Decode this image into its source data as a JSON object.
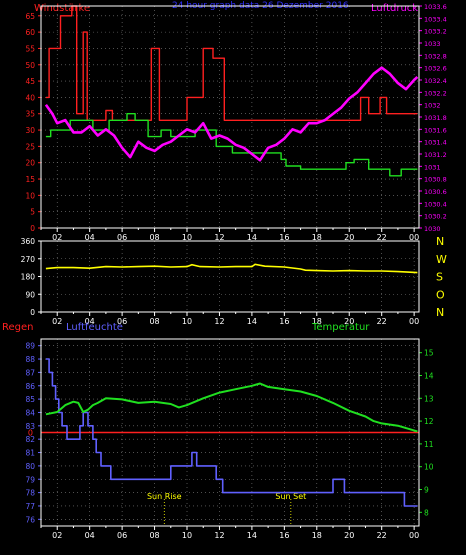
{
  "header": {
    "title": "24 hour graph data  26 Dezember 2016",
    "left_label": "Windstärke",
    "right_label": "Luftdruck"
  },
  "colors": {
    "background": "#000000",
    "frame": "#ffffff",
    "grid": "#808080",
    "wind_gust": "#ff2020",
    "wind_avg": "#20e020",
    "pressure": "#ff00ff",
    "direction": "#ffff00",
    "rain": "#ff2020",
    "humidity": "#6060ff",
    "temperature": "#20e020",
    "title": "#3030ff",
    "sun": "#ffff00",
    "ticks_orange": "#ff8020"
  },
  "chart_data": [
    {
      "id": "wind-pressure",
      "type": "line",
      "title": "24 hour graph data  26 Dezember 2016",
      "x_ticks": [
        "02",
        "04",
        "06",
        "08",
        "10",
        "12",
        "14",
        "16",
        "18",
        "20",
        "22",
        "00"
      ],
      "x_range": [
        1,
        24.3
      ],
      "y_left": {
        "label": "Windstärke",
        "ylim": [
          0,
          68
        ],
        "ticks": [
          0,
          5,
          10,
          15,
          20,
          25,
          30,
          35,
          40,
          45,
          50,
          55,
          60,
          65
        ]
      },
      "y_right": {
        "label": "Luftdruck",
        "ylim": [
          1030.0,
          1033.6
        ],
        "ticks": [
          "1030",
          "1030.2",
          "1030.4",
          "1030.6",
          "1030.8",
          "1031",
          "1031.2",
          "1031.4",
          "1031.6",
          "1031.8",
          "1032",
          "1032.2",
          "1032.4",
          "1032.6",
          "1032.8",
          "1033",
          "1033.2",
          "1033.4",
          "1033.6"
        ]
      },
      "series": [
        {
          "name": "",
          "axis": "left",
          "color": "#ff2020",
          "x": [
            1.3,
            1.5,
            1.5,
            2.2,
            2.2,
            2.9,
            2.9,
            3.2,
            3.2,
            3.6,
            3.6,
            3.85,
            3.85,
            5.0,
            5.0,
            5.4,
            5.4,
            6.0,
            6.0,
            7.8,
            7.8,
            8.3,
            8.3,
            10.0,
            10.0,
            11.0,
            11.0,
            11.6,
            11.6,
            12.3,
            12.3,
            20.7,
            20.7,
            21.2,
            21.2,
            21.9,
            21.9,
            22.3,
            22.3,
            24.2
          ],
          "y": [
            40,
            40,
            55,
            55,
            65,
            65,
            68,
            68,
            35,
            35,
            60,
            60,
            33,
            33,
            36,
            36,
            33,
            33,
            33,
            33,
            55,
            55,
            33,
            33,
            40,
            40,
            55,
            55,
            52,
            52,
            33,
            33,
            40,
            40,
            35,
            35,
            40,
            40,
            35,
            35
          ]
        },
        {
          "name": "",
          "axis": "left",
          "color": "#20e020",
          "x": [
            1.3,
            1.6,
            1.6,
            2.8,
            2.8,
            4.2,
            4.2,
            5.2,
            5.2,
            6.3,
            6.3,
            6.8,
            6.8,
            7.6,
            7.6,
            8.4,
            8.4,
            9.0,
            9.0,
            10.5,
            10.5,
            11.8,
            11.8,
            12.8,
            12.8,
            15.8,
            15.8,
            16.1,
            16.1,
            17.0,
            17.0,
            19.8,
            19.8,
            20.3,
            20.3,
            21.2,
            21.2,
            22.5,
            22.5,
            23.2,
            23.2,
            24.2
          ],
          "y": [
            28,
            28,
            30,
            30,
            33,
            33,
            30,
            30,
            33,
            33,
            35,
            35,
            33,
            33,
            28,
            28,
            30,
            30,
            28,
            28,
            30,
            30,
            25,
            25,
            23,
            23,
            21,
            21,
            19,
            19,
            18,
            18,
            20,
            20,
            21,
            21,
            18,
            18,
            16,
            16,
            18,
            18
          ]
        },
        {
          "name": "",
          "axis": "right",
          "color": "#ff00ff",
          "x": [
            1.3,
            1.7,
            2.0,
            2.5,
            3.0,
            3.5,
            4.0,
            4.5,
            5.0,
            5.5,
            6.0,
            6.5,
            7.0,
            7.5,
            8.0,
            8.5,
            9.0,
            9.5,
            10.0,
            10.5,
            11.0,
            11.5,
            12.0,
            12.5,
            13.0,
            13.5,
            14.0,
            14.5,
            15.0,
            15.5,
            16.0,
            16.5,
            17.0,
            17.5,
            18.0,
            18.5,
            19.0,
            19.5,
            20.0,
            20.5,
            21.0,
            21.5,
            22.0,
            22.5,
            23.0,
            23.5,
            24.0,
            24.2
          ],
          "y": [
            1032.0,
            1031.85,
            1031.7,
            1031.75,
            1031.55,
            1031.55,
            1031.65,
            1031.5,
            1031.6,
            1031.5,
            1031.3,
            1031.15,
            1031.4,
            1031.3,
            1031.25,
            1031.35,
            1031.4,
            1031.5,
            1031.6,
            1031.55,
            1031.7,
            1031.45,
            1031.5,
            1031.45,
            1031.35,
            1031.3,
            1031.2,
            1031.1,
            1031.3,
            1031.35,
            1031.45,
            1031.6,
            1031.55,
            1031.7,
            1031.7,
            1031.75,
            1031.85,
            1031.95,
            1032.1,
            1032.2,
            1032.35,
            1032.5,
            1032.6,
            1032.5,
            1032.35,
            1032.25,
            1032.4,
            1032.45
          ]
        }
      ]
    },
    {
      "id": "wind-direction",
      "type": "line",
      "x_ticks": [
        "02",
        "04",
        "06",
        "08",
        "10",
        "12",
        "14",
        "16",
        "18",
        "20",
        "22",
        "00"
      ],
      "x_range": [
        1,
        24.3
      ],
      "y_left": {
        "ylim": [
          0,
          360
        ],
        "ticks": [
          0,
          90,
          180,
          270,
          360
        ]
      },
      "y_right_labels": [
        "N",
        "W",
        "S",
        "O",
        "N"
      ],
      "series": [
        {
          "name": "",
          "color": "#ffff00",
          "x": [
            1.3,
            2.0,
            3.0,
            4.0,
            5.0,
            6.0,
            7.0,
            8.0,
            9.0,
            10.0,
            10.3,
            10.8,
            12.0,
            13.0,
            14.0,
            14.2,
            14.8,
            16.0,
            17.0,
            17.3,
            18.0,
            19.0,
            20.0,
            21.0,
            22.0,
            23.0,
            24.2
          ],
          "y": [
            220,
            225,
            225,
            222,
            230,
            228,
            230,
            232,
            228,
            230,
            240,
            230,
            228,
            230,
            230,
            242,
            232,
            228,
            218,
            212,
            210,
            208,
            210,
            208,
            208,
            205,
            200
          ]
        }
      ]
    },
    {
      "id": "rain-humidity-temperature",
      "type": "line",
      "x_ticks": [
        "02",
        "04",
        "06",
        "08",
        "10",
        "12",
        "14",
        "16",
        "18",
        "20",
        "22",
        "00"
      ],
      "x_range": [
        1,
        24.3
      ],
      "labels": {
        "rain": "Regen",
        "humidity": "Luftfeuchte",
        "temperature": "Temperatur"
      },
      "y_left": {
        "ylim": [
          75.5,
          89.5
        ],
        "ticks": [
          76,
          77,
          78,
          79,
          80,
          81,
          82,
          83,
          84,
          85,
          86,
          87,
          88,
          89
        ]
      },
      "rain_marker": "0",
      "y_right": {
        "ylim": [
          7.4,
          15.6
        ],
        "ticks": [
          8,
          9,
          10,
          11,
          12,
          13,
          14,
          15
        ]
      },
      "annotations": [
        {
          "text": "Sun Rise",
          "x": 8.6
        },
        {
          "text": "Sun Set",
          "x": 16.4
        }
      ],
      "series": [
        {
          "name": "",
          "key": "rain",
          "color": "#ff2020",
          "x": [
            1.0,
            24.3
          ],
          "y": [
            82.5,
            82.5
          ]
        },
        {
          "name": "",
          "key": "humidity",
          "color": "#6060ff",
          "x": [
            1.3,
            1.5,
            1.5,
            1.7,
            1.7,
            1.9,
            1.9,
            2.1,
            2.1,
            2.3,
            2.3,
            2.6,
            2.6,
            3.4,
            3.4,
            3.6,
            3.6,
            3.9,
            3.9,
            4.2,
            4.2,
            4.4,
            4.4,
            4.7,
            4.7,
            5.3,
            5.3,
            5.7,
            5.7,
            9.0,
            9.0,
            10.3,
            10.3,
            10.6,
            10.6,
            11.8,
            11.8,
            12.2,
            12.2,
            12.6,
            12.6,
            19.0,
            19.0,
            19.7,
            19.7,
            23.4,
            23.4,
            24.2
          ],
          "y": [
            88,
            88,
            87,
            87,
            86,
            86,
            85,
            85,
            84,
            84,
            83,
            83,
            82,
            82,
            83,
            83,
            84,
            84,
            83,
            83,
            82,
            82,
            81,
            81,
            80,
            80,
            79,
            79,
            79,
            79,
            80,
            80,
            81,
            81,
            80,
            80,
            79,
            79,
            78,
            78,
            78,
            78,
            79,
            79,
            78,
            78,
            77,
            77
          ]
        },
        {
          "name": "",
          "key": "temperature",
          "color": "#20e020",
          "x": [
            1.3,
            2.0,
            2.5,
            3.0,
            3.3,
            3.6,
            3.9,
            4.2,
            4.5,
            5.0,
            6.0,
            7.0,
            8.0,
            9.0,
            9.5,
            10.0,
            11.0,
            12.0,
            13.0,
            14.0,
            14.5,
            15.0,
            16.0,
            17.0,
            18.0,
            19.0,
            20.0,
            21.0,
            21.5,
            22.0,
            23.0,
            24.2
          ],
          "y": [
            12.3,
            12.4,
            12.7,
            12.85,
            12.8,
            12.4,
            12.5,
            12.7,
            12.8,
            13.0,
            12.95,
            12.8,
            12.85,
            12.75,
            12.6,
            12.7,
            13.0,
            13.25,
            13.4,
            13.55,
            13.65,
            13.5,
            13.4,
            13.3,
            13.1,
            12.8,
            12.45,
            12.2,
            12.0,
            11.9,
            11.8,
            11.55
          ]
        }
      ]
    }
  ]
}
